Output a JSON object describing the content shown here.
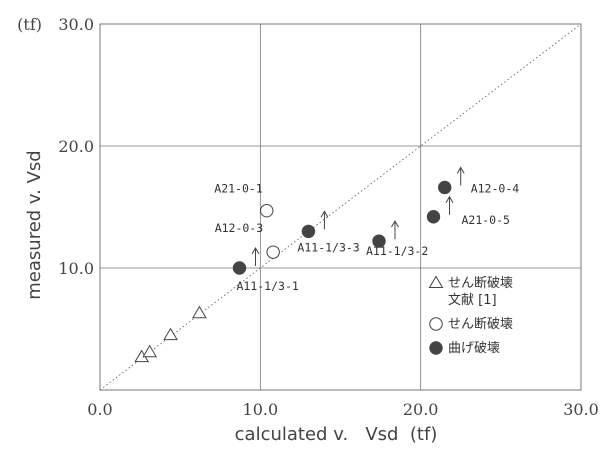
{
  "chart_data": {
    "type": "scatter",
    "xlabel": "calculated v.   Vsd  (tf)",
    "ylabel": "measured v.   Vsd",
    "y_unit_label": "(tf)",
    "xlim": [
      0,
      30
    ],
    "ylim": [
      0,
      30
    ],
    "x_ticks": [
      {
        "value": 0,
        "label": "0.0"
      },
      {
        "value": 10,
        "label": "10.0"
      },
      {
        "value": 20,
        "label": "20.0"
      },
      {
        "value": 30,
        "label": "30.0"
      }
    ],
    "y_ticks": [
      {
        "value": 10,
        "label": "10.0"
      },
      {
        "value": 20,
        "label": "20.0"
      },
      {
        "value": 30,
        "label": "30.0"
      }
    ],
    "grid": true,
    "reference_line": {
      "x": [
        0,
        30
      ],
      "y": [
        0,
        30
      ],
      "style": "dotted"
    },
    "series": [
      {
        "name": "せん断破壊\n文献 [1]",
        "marker": "triangle",
        "points": [
          {
            "x": 2.6,
            "y": 2.7
          },
          {
            "x": 3.1,
            "y": 3.1
          },
          {
            "x": 4.4,
            "y": 4.5
          },
          {
            "x": 6.2,
            "y": 6.3
          }
        ]
      },
      {
        "name": "せん断破壊",
        "marker": "circle-open",
        "points": [
          {
            "x": 10.4,
            "y": 14.7,
            "label": "A21-0-1"
          },
          {
            "x": 10.8,
            "y": 11.3,
            "label": "A12-0-3"
          }
        ]
      },
      {
        "name": "曲げ破壊",
        "marker": "circle-filled",
        "points": [
          {
            "x": 8.7,
            "y": 10.0,
            "label": "A11-1/3-1",
            "arrow": true
          },
          {
            "x": 13.0,
            "y": 13.0,
            "label": "A11-1/3-3",
            "arrow": true
          },
          {
            "x": 17.4,
            "y": 12.2,
            "label": "A11-1/3-2",
            "arrow": true
          },
          {
            "x": 21.5,
            "y": 16.6,
            "label": "A12-0-4",
            "arrow": true
          },
          {
            "x": 20.8,
            "y": 14.2,
            "label": "A21-0-5",
            "arrow": true
          }
        ]
      }
    ],
    "legend": {
      "position": "lower-right",
      "entries": [
        {
          "marker": "triangle",
          "label": "せん断破壊\n文献 [1]"
        },
        {
          "marker": "circle-open",
          "label": "せん断破壊"
        },
        {
          "marker": "circle-filled",
          "label": "曲げ破壊"
        }
      ]
    },
    "colors": {
      "marker": "#444444",
      "grid": "#777777",
      "text": "#333333"
    }
  }
}
